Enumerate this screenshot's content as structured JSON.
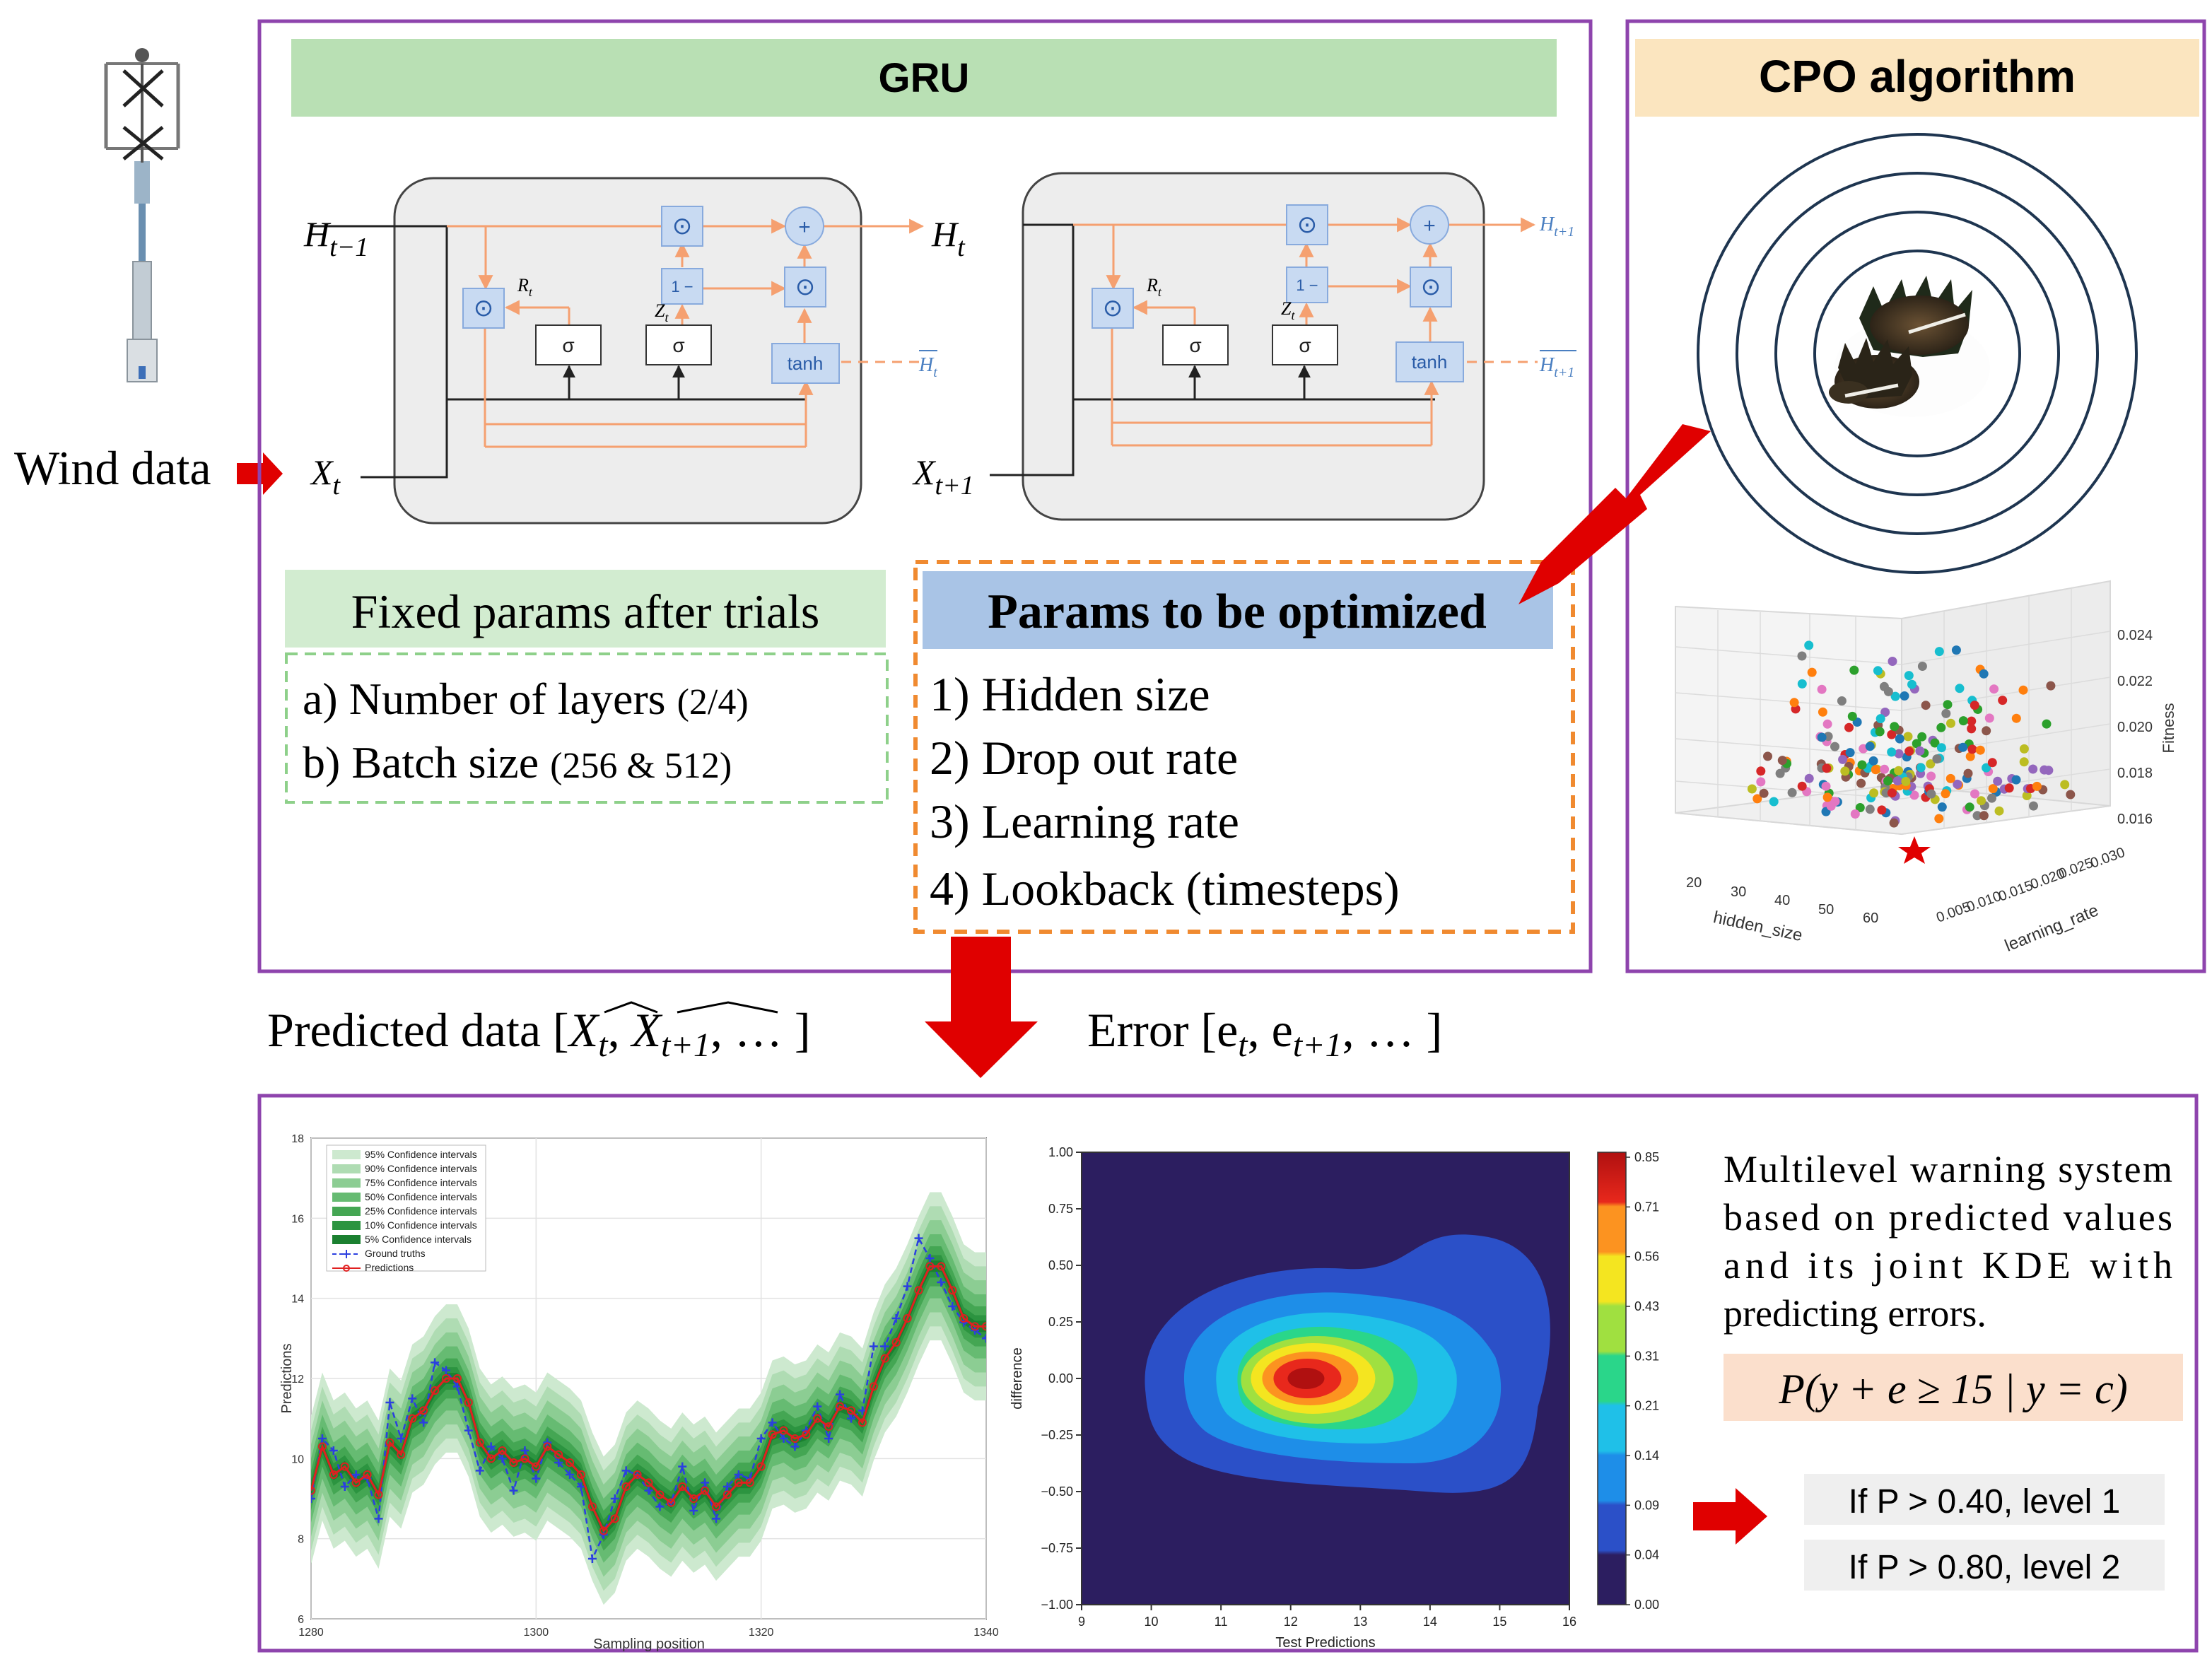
{
  "input": {
    "wind_label": "Wind data"
  },
  "gru": {
    "title": "GRU",
    "cell1": {
      "h_in_base": "H",
      "h_in_sub": "t−1",
      "h_out_base": "H",
      "h_out_sub": "t",
      "x_base": "X",
      "x_sub": "t",
      "htilde": "H",
      "htilde_sub": "t",
      "r": "R",
      "r_sub": "t",
      "z": "Z",
      "z_sub": "t"
    },
    "cell2": {
      "h_in_base": "H",
      "h_in_sub": "t",
      "h_out_base": "H",
      "h_out_sub": "t+1",
      "x_base": "X",
      "x_sub": "t+1",
      "htilde": "H",
      "htilde_sub": "t+1",
      "r": "R",
      "r_sub": "t",
      "z": "Z",
      "z_sub": "t"
    },
    "ops": {
      "mult": "⊙",
      "plus": "+",
      "one_minus": "1 −",
      "sigma": "σ",
      "tanh": "tanh"
    },
    "fixed_title": "Fixed params after trials",
    "fixed_items": [
      {
        "text": "a) Number of layers ",
        "note": "(2/4)"
      },
      {
        "text": "b) Batch size ",
        "note": "(256 & 512)"
      }
    ],
    "opt_title": "Params to be optimized",
    "opt_items": [
      "1) Hidden size",
      "2) Drop out rate",
      "3) Learning rate",
      "4) Lookback (timesteps)"
    ]
  },
  "cpo": {
    "title": "CPO algorithm",
    "scatter3d": {
      "xlabel": "hidden_size",
      "ylabel": "learning_rate",
      "zlabel": "Fitness",
      "xticks": [
        "20",
        "30",
        "40",
        "50",
        "60"
      ],
      "yticks": [
        "0.005",
        "0.010",
        "0.015",
        "0.020",
        "0.025",
        "0.030"
      ],
      "zticks": [
        "0.016",
        "0.018",
        "0.020",
        "0.022",
        "0.024"
      ]
    }
  },
  "flow": {
    "predicted_label": "Predicted data [",
    "predicted_terms": [
      "X",
      "t",
      "X",
      "t+1",
      ", … ]"
    ],
    "error_label": "Error [e",
    "error_sub1": "t",
    "error_mid": ", e",
    "error_sub2": "t+1",
    "error_end": ", … ]"
  },
  "chart_data": [
    {
      "type": "line",
      "xlabel": "Sampling position",
      "ylabel": "Predictions",
      "xlim": [
        1280,
        1340
      ],
      "ylim": [
        6,
        18
      ],
      "xticks": [
        "1280",
        "1300",
        "1320",
        "1340"
      ],
      "yticks": [
        "6",
        "8",
        "10",
        "12",
        "14",
        "16",
        "18"
      ],
      "legend": [
        "95% Confidence intervals",
        "90% Confidence intervals",
        "75% Confidence intervals",
        "50% Confidence intervals",
        "25% Confidence intervals",
        "10% Confidence intervals",
        "5% Confidence intervals",
        "Ground truths",
        "Predictions"
      ],
      "x": [
        1280,
        1281,
        1282,
        1283,
        1284,
        1285,
        1286,
        1287,
        1288,
        1289,
        1290,
        1291,
        1292,
        1293,
        1294,
        1295,
        1296,
        1297,
        1298,
        1299,
        1300,
        1301,
        1302,
        1303,
        1304,
        1305,
        1306,
        1307,
        1308,
        1309,
        1310,
        1311,
        1312,
        1313,
        1314,
        1315,
        1316,
        1317,
        1318,
        1319,
        1320,
        1321,
        1322,
        1323,
        1324,
        1325,
        1326,
        1327,
        1328,
        1329,
        1330,
        1331,
        1332,
        1333,
        1334,
        1335,
        1336,
        1337,
        1338,
        1339,
        1340
      ],
      "series": [
        {
          "name": "Predictions",
          "values": [
            9.2,
            10.3,
            9.6,
            9.8,
            9.4,
            9.6,
            9.1,
            10.4,
            10.1,
            11.0,
            11.2,
            11.7,
            12.0,
            12.0,
            11.4,
            10.4,
            10.0,
            10.2,
            9.9,
            10.0,
            9.8,
            10.3,
            10.1,
            9.9,
            9.6,
            8.8,
            8.2,
            8.5,
            9.3,
            9.6,
            9.4,
            9.1,
            8.9,
            9.3,
            9.0,
            9.2,
            8.8,
            9.1,
            9.4,
            9.4,
            9.8,
            10.6,
            10.7,
            10.5,
            10.6,
            11.0,
            10.8,
            11.3,
            11.2,
            10.9,
            11.8,
            12.5,
            12.9,
            13.5,
            14.2,
            14.8,
            14.8,
            14.2,
            13.5,
            13.3,
            13.3
          ]
        },
        {
          "name": "Ground truths",
          "values": [
            9.0,
            10.5,
            10.2,
            9.3,
            9.6,
            9.5,
            8.5,
            11.4,
            10.5,
            11.5,
            10.9,
            12.4,
            12.2,
            11.8,
            10.7,
            9.7,
            10.3,
            10.0,
            9.2,
            10.2,
            9.5,
            10.4,
            9.9,
            9.6,
            9.3,
            7.5,
            8.1,
            9.0,
            9.7,
            9.6,
            9.2,
            8.8,
            8.9,
            9.8,
            8.7,
            9.4,
            8.5,
            9.3,
            9.6,
            9.5,
            10.5,
            10.9,
            10.5,
            10.3,
            10.7,
            11.3,
            10.5,
            11.6,
            11.0,
            11.2,
            12.8,
            12.8,
            13.5,
            14.3,
            15.5,
            15.0,
            14.4,
            13.8,
            13.4,
            13.2,
            13.0
          ]
        }
      ]
    },
    {
      "type": "heatmap",
      "xlabel": "Test Predictions",
      "ylabel": "difference",
      "xlim": [
        9,
        16
      ],
      "ylim": [
        -1.0,
        1.0
      ],
      "xticks": [
        "9",
        "10",
        "11",
        "12",
        "13",
        "14",
        "15",
        "16"
      ],
      "yticks": [
        "−1.00",
        "−0.75",
        "−0.50",
        "−0.25",
        "0.00",
        "0.25",
        "0.50",
        "0.75",
        "1.00"
      ],
      "colorbar_ticks": [
        "0.00",
        "0.04",
        "0.09",
        "0.14",
        "0.21",
        "0.31",
        "0.43",
        "0.56",
        "0.71",
        "0.85"
      ],
      "peak": {
        "x": 12.2,
        "y": 0.0
      }
    }
  ],
  "warning": {
    "description": "Multilevel warning system based on predicted values and its joint KDE with predicting errors.",
    "formula": "P(y + e ≥ 15 | y = c)",
    "levels": [
      "If P > 0.40, level 1",
      "If P > 0.80, level 2"
    ]
  },
  "colors": {
    "purple": "#8e44ad",
    "green_title": "#b9e0b4",
    "blue_title": "#a9c4e6",
    "cpo_title": "#fbe5bf",
    "red_arrow": "#e00000",
    "orange": "#f08a30"
  }
}
